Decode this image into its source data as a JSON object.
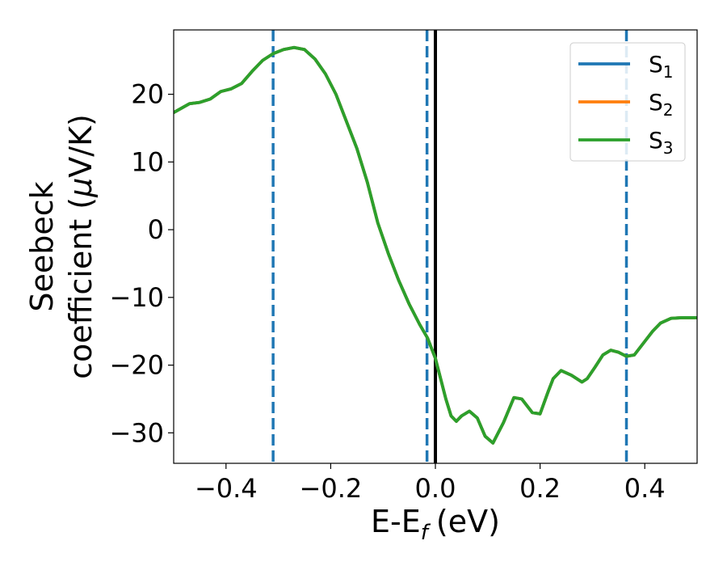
{
  "chart_data": {
    "type": "line",
    "xlabel": "E-E",
    "xlabel_sub": "f",
    "xlabel_unit": "(eV)",
    "ylabel_line1": "Seebeck",
    "ylabel_line2": "coefficient  (",
    "ylabel_mu": "μ",
    "ylabel_unit": "V/K)",
    "xlim": [
      -0.5,
      0.5
    ],
    "ylim": [
      -34.5,
      29.5
    ],
    "x_ticks": [
      -0.4,
      -0.2,
      0.0,
      0.2,
      0.4
    ],
    "x_tick_labels": [
      "−0.4",
      "−0.2",
      "0.0",
      "0.2",
      "0.4"
    ],
    "y_ticks": [
      20,
      10,
      0,
      -10,
      -20,
      -30
    ],
    "y_tick_labels": [
      "20",
      "10",
      "0",
      "−10",
      "−20",
      "−30"
    ],
    "grid": false,
    "legend_position": "top-right",
    "series": [
      {
        "name": "S",
        "sub": "1",
        "color": "#1f77b4",
        "x": [
          -0.5,
          -0.47,
          -0.45,
          -0.43,
          -0.41,
          -0.39,
          -0.37,
          -0.35,
          -0.33,
          -0.31,
          -0.29,
          -0.27,
          -0.25,
          -0.23,
          -0.21,
          -0.19,
          -0.17,
          -0.15,
          -0.13,
          -0.11,
          -0.09,
          -0.07,
          -0.05,
          -0.03,
          -0.015,
          0.0,
          0.01,
          0.02,
          0.03,
          0.04,
          0.05,
          0.065,
          0.08,
          0.095,
          0.11,
          0.13,
          0.15,
          0.165,
          0.185,
          0.2,
          0.215,
          0.225,
          0.24,
          0.26,
          0.28,
          0.29,
          0.305,
          0.32,
          0.335,
          0.35,
          0.365,
          0.38,
          0.4,
          0.415,
          0.43,
          0.45,
          0.47,
          0.485,
          0.5
        ],
        "y": [
          17.3,
          18.6,
          18.8,
          19.3,
          20.4,
          20.8,
          21.6,
          23.4,
          25.0,
          26.0,
          26.6,
          26.9,
          26.6,
          25.2,
          23.0,
          20.0,
          16.0,
          12.0,
          7.0,
          1.0,
          -3.5,
          -7.5,
          -11.0,
          -14.0,
          -16.0,
          -19.0,
          -22.0,
          -25.0,
          -27.5,
          -28.3,
          -27.5,
          -26.8,
          -27.8,
          -30.5,
          -31.5,
          -28.5,
          -24.8,
          -25.0,
          -27.0,
          -27.2,
          -24.0,
          -22.0,
          -20.8,
          -21.5,
          -22.5,
          -22.0,
          -20.3,
          -18.5,
          -17.8,
          -18.1,
          -18.7,
          -18.5,
          -16.5,
          -15.0,
          -13.8,
          -13.1,
          -13.0,
          -13.0,
          -13.0
        ]
      },
      {
        "name": "S",
        "sub": "2",
        "color": "#ff7f0e",
        "x": [
          -0.5,
          -0.47,
          -0.45,
          -0.43,
          -0.41,
          -0.39,
          -0.37,
          -0.35,
          -0.33,
          -0.31,
          -0.29,
          -0.27,
          -0.25,
          -0.23,
          -0.21,
          -0.19,
          -0.17,
          -0.15,
          -0.13,
          -0.11,
          -0.09,
          -0.07,
          -0.05,
          -0.03,
          -0.015,
          0.0,
          0.01,
          0.02,
          0.03,
          0.04,
          0.05,
          0.065,
          0.08,
          0.095,
          0.11,
          0.13,
          0.15,
          0.165,
          0.185,
          0.2,
          0.215,
          0.225,
          0.24,
          0.26,
          0.28,
          0.29,
          0.305,
          0.32,
          0.335,
          0.35,
          0.365,
          0.38,
          0.4,
          0.415,
          0.43,
          0.45,
          0.47,
          0.485,
          0.5
        ],
        "y": [
          17.3,
          18.6,
          18.8,
          19.3,
          20.4,
          20.8,
          21.6,
          23.4,
          25.0,
          26.0,
          26.6,
          26.9,
          26.6,
          25.2,
          23.0,
          20.0,
          16.0,
          12.0,
          7.0,
          1.0,
          -3.5,
          -7.5,
          -11.0,
          -14.0,
          -16.0,
          -19.0,
          -22.0,
          -25.0,
          -27.5,
          -28.3,
          -27.5,
          -26.8,
          -27.8,
          -30.5,
          -31.5,
          -28.5,
          -24.8,
          -25.0,
          -27.0,
          -27.2,
          -24.0,
          -22.0,
          -20.8,
          -21.5,
          -22.5,
          -22.0,
          -20.3,
          -18.5,
          -17.8,
          -18.1,
          -18.7,
          -18.5,
          -16.5,
          -15.0,
          -13.8,
          -13.1,
          -13.0,
          -13.0,
          -13.0
        ]
      },
      {
        "name": "S",
        "sub": "3",
        "color": "#2ca02c",
        "x": [
          -0.5,
          -0.47,
          -0.45,
          -0.43,
          -0.41,
          -0.39,
          -0.37,
          -0.35,
          -0.33,
          -0.31,
          -0.29,
          -0.27,
          -0.25,
          -0.23,
          -0.21,
          -0.19,
          -0.17,
          -0.15,
          -0.13,
          -0.11,
          -0.09,
          -0.07,
          -0.05,
          -0.03,
          -0.015,
          0.0,
          0.01,
          0.02,
          0.03,
          0.04,
          0.05,
          0.065,
          0.08,
          0.095,
          0.11,
          0.13,
          0.15,
          0.165,
          0.185,
          0.2,
          0.215,
          0.225,
          0.24,
          0.26,
          0.28,
          0.29,
          0.305,
          0.32,
          0.335,
          0.35,
          0.365,
          0.38,
          0.4,
          0.415,
          0.43,
          0.45,
          0.47,
          0.485,
          0.5
        ],
        "y": [
          17.3,
          18.6,
          18.8,
          19.3,
          20.4,
          20.8,
          21.6,
          23.4,
          25.0,
          26.0,
          26.6,
          26.9,
          26.6,
          25.2,
          23.0,
          20.0,
          16.0,
          12.0,
          7.0,
          1.0,
          -3.5,
          -7.5,
          -11.0,
          -14.0,
          -16.0,
          -19.0,
          -22.0,
          -25.0,
          -27.5,
          -28.3,
          -27.5,
          -26.8,
          -27.8,
          -30.5,
          -31.5,
          -28.5,
          -24.8,
          -25.0,
          -27.0,
          -27.2,
          -24.0,
          -22.0,
          -20.8,
          -21.5,
          -22.5,
          -22.0,
          -20.3,
          -18.5,
          -17.8,
          -18.1,
          -18.7,
          -18.5,
          -16.5,
          -15.0,
          -13.8,
          -13.1,
          -13.0,
          -13.0,
          -13.0
        ]
      }
    ],
    "vertical_lines": [
      {
        "x": -0.31,
        "style": "dashed",
        "color": "#1f77b4"
      },
      {
        "x": -0.016,
        "style": "dashed",
        "color": "#1f77b4"
      },
      {
        "x": 0.0,
        "style": "solid",
        "color": "#000000"
      },
      {
        "x": 0.365,
        "style": "dashed",
        "color": "#1f77b4"
      }
    ]
  }
}
